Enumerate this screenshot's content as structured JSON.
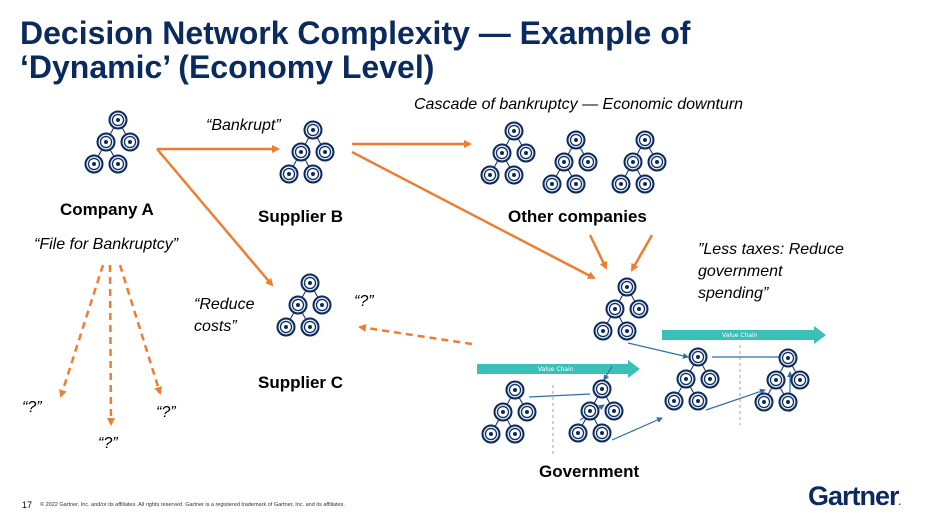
{
  "title_line1": "Decision Network Complexity — Example of",
  "title_line2": "‘Dynamic’ (Economy Level)",
  "labels": {
    "company_a": "Company A",
    "file_bankruptcy": "“File for Bankruptcy”",
    "bankrupt": "“Bankrupt”",
    "supplier_b": "Supplier B",
    "cascade": "Cascade of bankruptcy — Economic downturn",
    "other_companies": "Other companies",
    "less_taxes_1": "”Less taxes: Reduce",
    "less_taxes_2": "government",
    "less_taxes_3": "spending”",
    "reduce_costs_1": "“Reduce",
    "reduce_costs_2": "costs”",
    "question_c": "“?”",
    "supplier_c": "Supplier C",
    "q_left": "“?”",
    "q_mid": "“?”",
    "q_right": "“?”",
    "government": "Government",
    "value_chain_top": "Value Chain",
    "value_chain_bottom": "Value Chain"
  },
  "colors": {
    "title": "#0b2a5e",
    "arrow": "#ee7d31",
    "node": "#0b2a5e",
    "teal": "#3bc0b8",
    "link": "#2f6fa8"
  },
  "footer": {
    "page_number": "17",
    "copyright": "© 2022 Gartner, Inc. and/or its affiliates. All rights reserved. Gartner is a registered trademark of Gartner, Inc. and its affiliates.",
    "logo": "Gartner"
  }
}
